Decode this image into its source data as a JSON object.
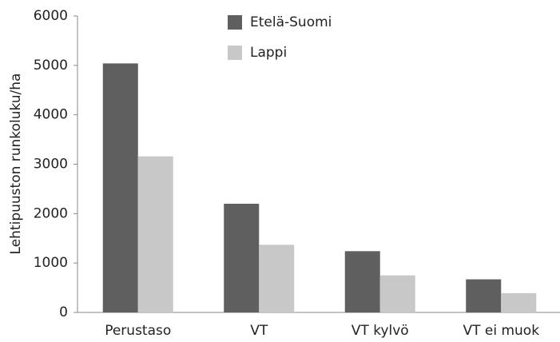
{
  "chart_data": {
    "type": "bar",
    "y_label": "Lehtipuuston runkoluku/ha",
    "categories": [
      "Perustaso",
      "VT",
      "VT kylvö",
      "VT ei muok"
    ],
    "series": [
      {
        "name": "Etelä-Suomi",
        "color": "#5f5f5f",
        "values": [
          5040,
          2200,
          1240,
          670
        ]
      },
      {
        "name": "Lappi",
        "color": "#c8c8c8",
        "values": [
          3160,
          1370,
          750,
          390
        ]
      }
    ],
    "ylim": [
      0,
      6000
    ],
    "yticks": [
      0,
      1000,
      2000,
      3000,
      4000,
      5000,
      6000
    ],
    "legend": "top"
  }
}
